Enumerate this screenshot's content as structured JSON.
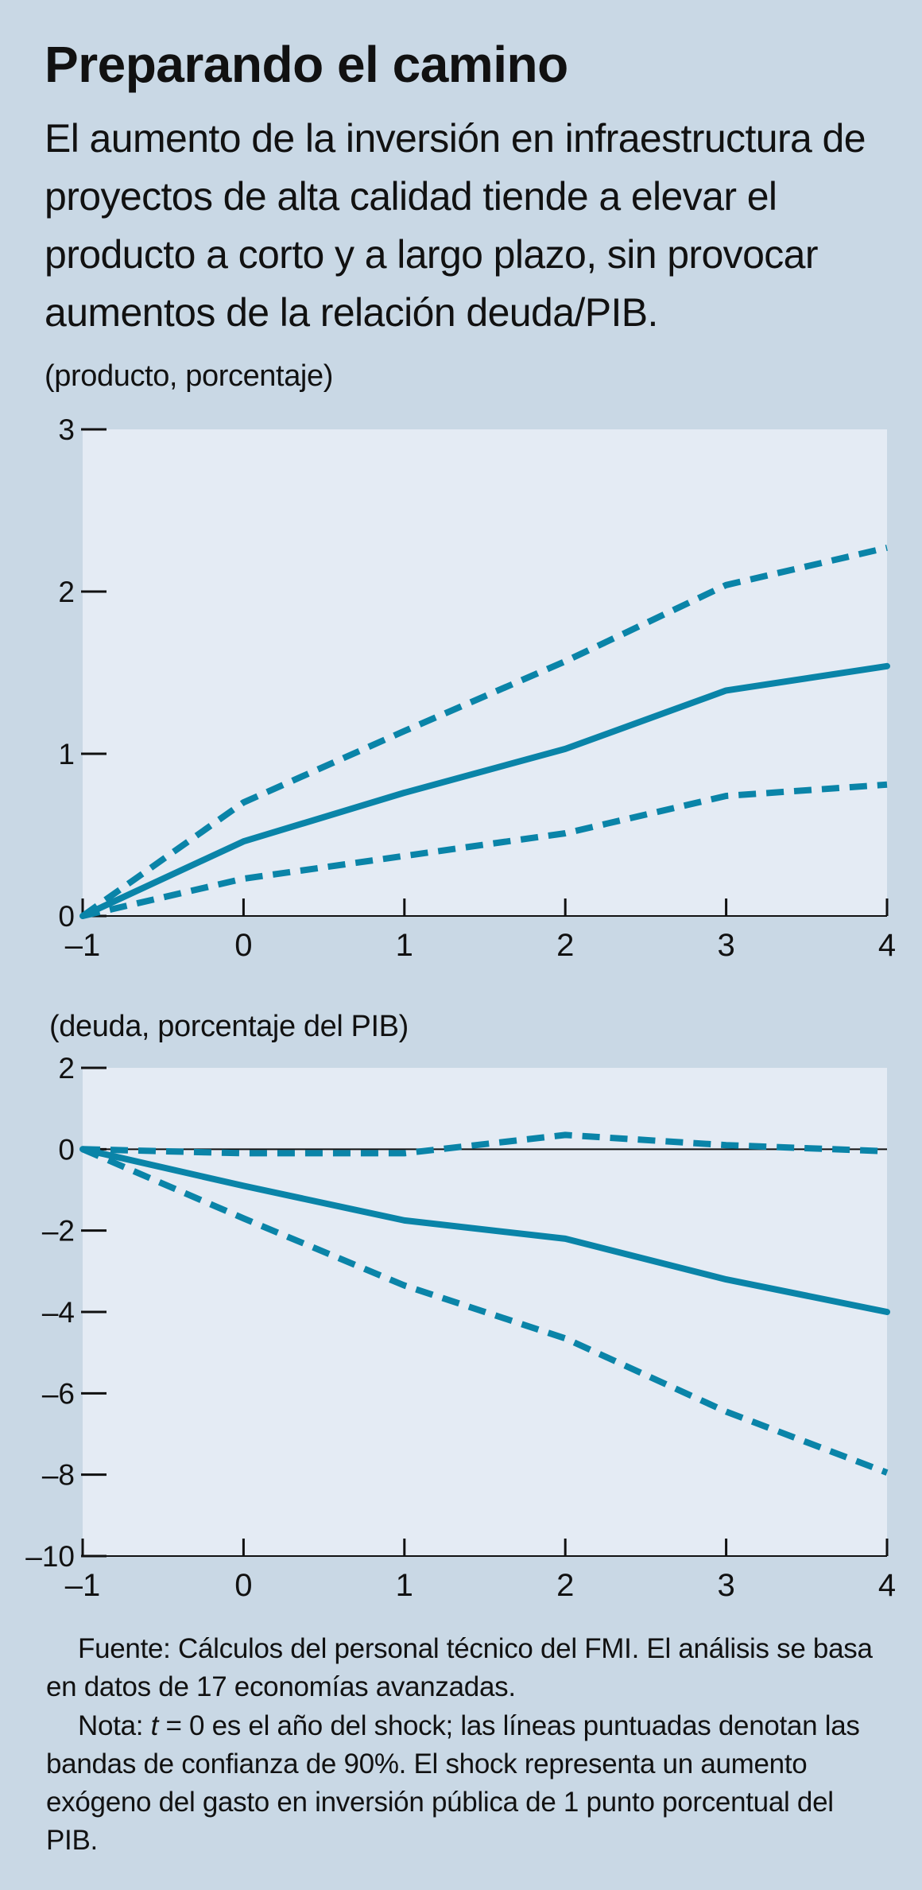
{
  "header": {
    "title": "Preparando el camino",
    "subtitle": "El aumento de la inversión en infraestructura de proyectos de alta calidad tiende a elevar el producto a corto y a largo plazo, sin provocar aumentos de la relación deuda/PIB."
  },
  "colors": {
    "background": "#c9d8e5",
    "plot_area": "#e4ebf4",
    "series": "#0a84a8",
    "axis": "#111111"
  },
  "chart_data": [
    {
      "type": "line",
      "ylabel": "(producto, porcentaje)",
      "x": [
        -1,
        0,
        1,
        2,
        3,
        4
      ],
      "x_tick_labels": [
        "–1",
        "0",
        "1",
        "2",
        "3",
        "4"
      ],
      "ylim": [
        0,
        3
      ],
      "y_ticks": [
        0,
        1,
        2,
        3
      ],
      "y_tick_labels": [
        "0",
        "1",
        "2",
        "3"
      ],
      "grid": false,
      "zero_line": false,
      "series": [
        {
          "style": "solid",
          "values": [
            0,
            0.46,
            0.76,
            1.03,
            1.39,
            1.54
          ]
        },
        {
          "style": "dashed",
          "values": [
            0,
            0.7,
            1.14,
            1.57,
            2.04,
            2.27
          ]
        },
        {
          "style": "dashed",
          "values": [
            0,
            0.23,
            0.37,
            0.51,
            0.74,
            0.81
          ]
        }
      ]
    },
    {
      "type": "line",
      "ylabel": "(deuda, porcentaje del PIB)",
      "x": [
        -1,
        0,
        1,
        2,
        3,
        4
      ],
      "x_tick_labels": [
        "–1",
        "0",
        "1",
        "2",
        "3",
        "4"
      ],
      "ylim": [
        -10,
        2
      ],
      "y_ticks": [
        2,
        0,
        -2,
        -4,
        -6,
        -8,
        -10
      ],
      "y_tick_labels": [
        "2",
        "0",
        "–2",
        "–4",
        "–6",
        "–8",
        "–10"
      ],
      "grid": false,
      "zero_line": true,
      "series": [
        {
          "style": "solid",
          "values": [
            0,
            -0.9,
            -1.75,
            -2.2,
            -3.2,
            -4.0
          ]
        },
        {
          "style": "dashed",
          "values": [
            0,
            -0.1,
            -0.1,
            0.35,
            0.1,
            -0.05
          ]
        },
        {
          "style": "dashed",
          "values": [
            0,
            -1.7,
            -3.35,
            -4.65,
            -6.45,
            -7.95
          ]
        }
      ]
    }
  ],
  "notes": {
    "source": "Fuente: Cálculos del personal técnico del FMI. El análisis se basa en datos de 17 economías avanzadas.",
    "note_prefix": "Nota: ",
    "note_t": "t",
    "note_rest": " = 0 es el año del shock; las líneas puntuadas denotan las bandas de confianza de 90%. El shock representa un aumento exógeno del gasto en inversión pública de 1 punto porcentual del PIB."
  }
}
